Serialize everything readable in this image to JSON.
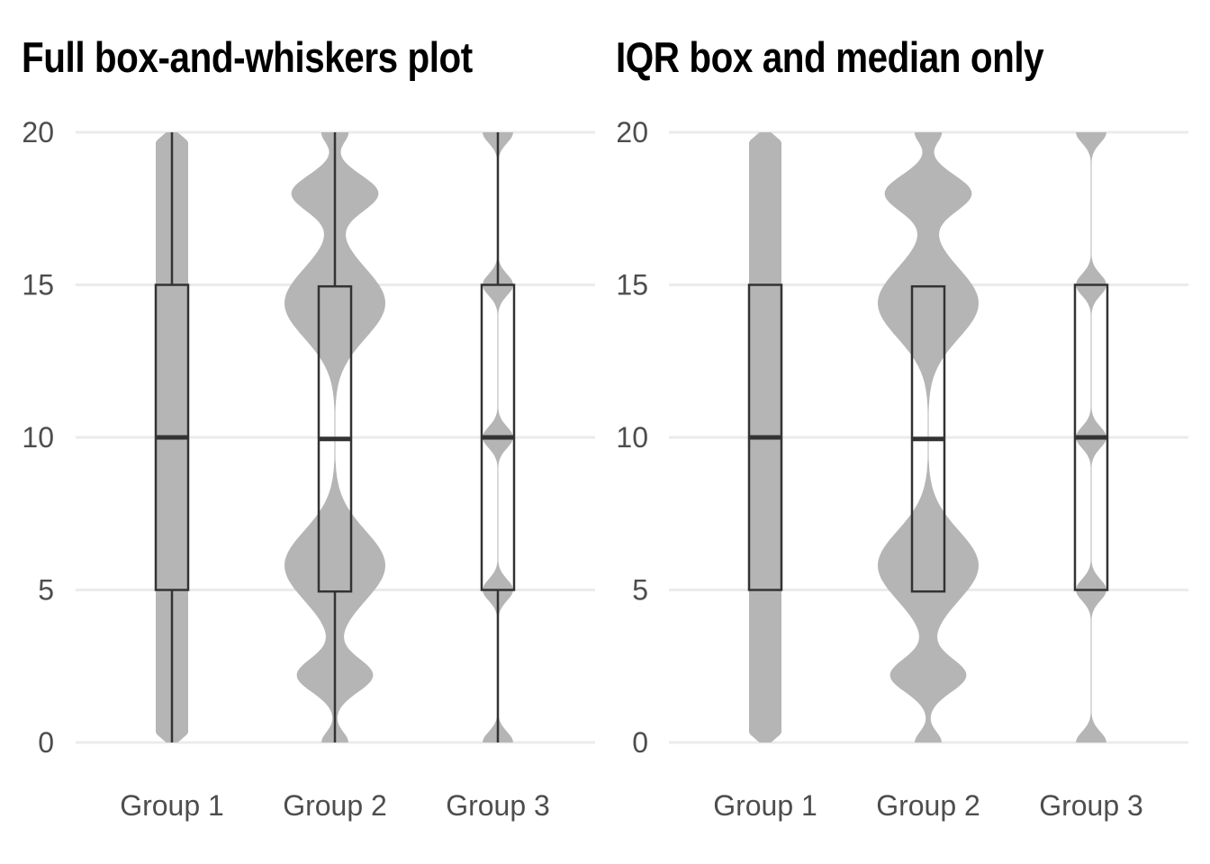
{
  "chart_data": [
    {
      "type": "violin",
      "title": "Full box-and-whiskers plot",
      "xlabel": "",
      "ylabel": "",
      "categories": [
        "Group 1",
        "Group 2",
        "Group 3"
      ],
      "ylim": [
        0,
        20
      ],
      "yticks": [
        0,
        5,
        10,
        15,
        20
      ],
      "grid": "horizontal",
      "overlay": "boxplot",
      "show_whiskers": true,
      "box": [
        {
          "min": 0,
          "q1": 5,
          "median": 10,
          "q3": 15,
          "max": 20
        },
        {
          "min": 0,
          "q1": 4.95,
          "median": 9.95,
          "q3": 14.95,
          "max": 20
        },
        {
          "min": 0,
          "q1": 5,
          "median": 10,
          "q3": 15,
          "max": 20
        }
      ],
      "distributions": [
        "uniform",
        "bimodal",
        "point-masses-at-0-5-10-15-20"
      ]
    },
    {
      "type": "violin",
      "title": "IQR box and median only",
      "xlabel": "",
      "ylabel": "",
      "categories": [
        "Group 1",
        "Group 2",
        "Group 3"
      ],
      "ylim": [
        0,
        20
      ],
      "yticks": [
        0,
        5,
        10,
        15,
        20
      ],
      "grid": "horizontal",
      "overlay": "boxplot",
      "show_whiskers": false,
      "box": [
        {
          "q1": 5,
          "median": 10,
          "q3": 15
        },
        {
          "q1": 4.95,
          "median": 9.95,
          "q3": 14.95
        },
        {
          "q1": 5,
          "median": 10,
          "q3": 15
        }
      ],
      "distributions": [
        "uniform",
        "bimodal",
        "point-masses-at-0-5-10-15-20"
      ]
    }
  ],
  "colors": {
    "violin_fill": "#b5b5b5",
    "box_line": "#333333",
    "grid": "#ebebeb",
    "tick_text": "#4d4d4d"
  }
}
